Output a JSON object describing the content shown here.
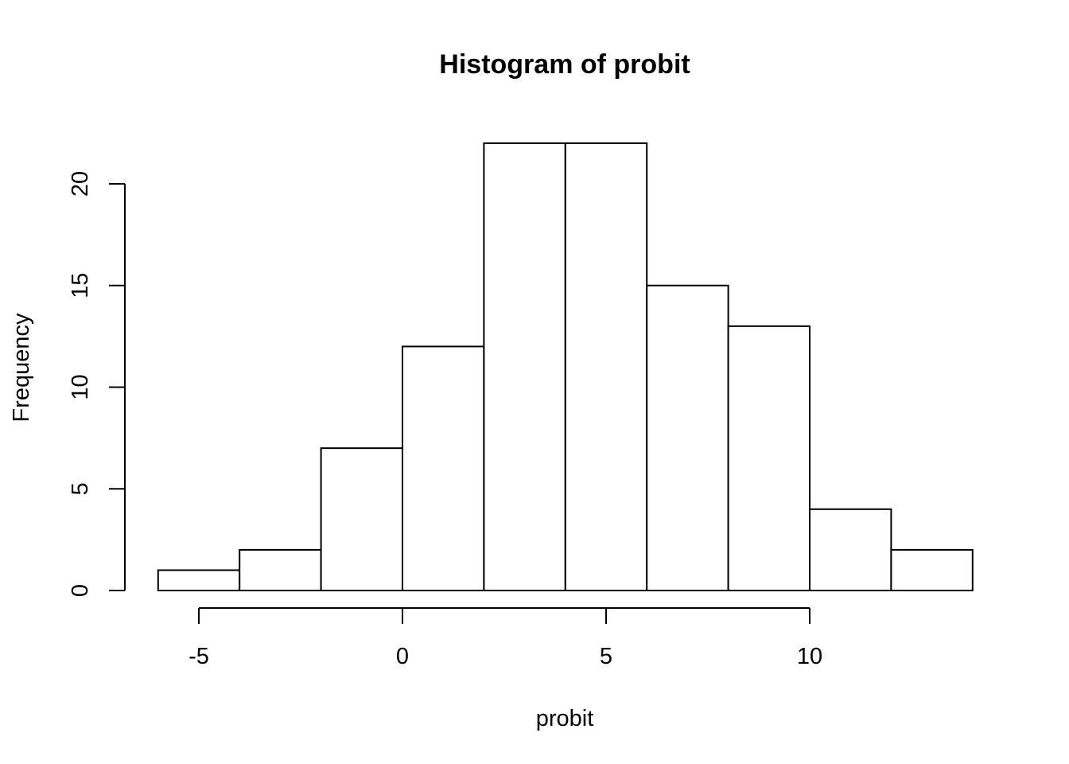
{
  "chart_data": {
    "type": "bar",
    "title": "Histogram of probit",
    "xlabel": "probit",
    "ylabel": "Frequency",
    "bins": [
      {
        "from": -6,
        "to": -4,
        "count": 1
      },
      {
        "from": -4,
        "to": -2,
        "count": 2
      },
      {
        "from": -2,
        "to": 0,
        "count": 7
      },
      {
        "from": 0,
        "to": 2,
        "count": 12
      },
      {
        "from": 2,
        "to": 4,
        "count": 22
      },
      {
        "from": 4,
        "to": 6,
        "count": 22
      },
      {
        "from": 6,
        "to": 8,
        "count": 15
      },
      {
        "from": 8,
        "to": 10,
        "count": 13
      },
      {
        "from": 10,
        "to": 12,
        "count": 4
      },
      {
        "from": 12,
        "to": 14,
        "count": 2
      }
    ],
    "x_ticks": [
      -5,
      0,
      5,
      10
    ],
    "y_ticks": [
      0,
      5,
      10,
      15,
      20
    ],
    "grid": false,
    "legend": "none",
    "colors": {
      "bar_fill": "#ffffff",
      "bar_stroke": "#000000"
    }
  }
}
